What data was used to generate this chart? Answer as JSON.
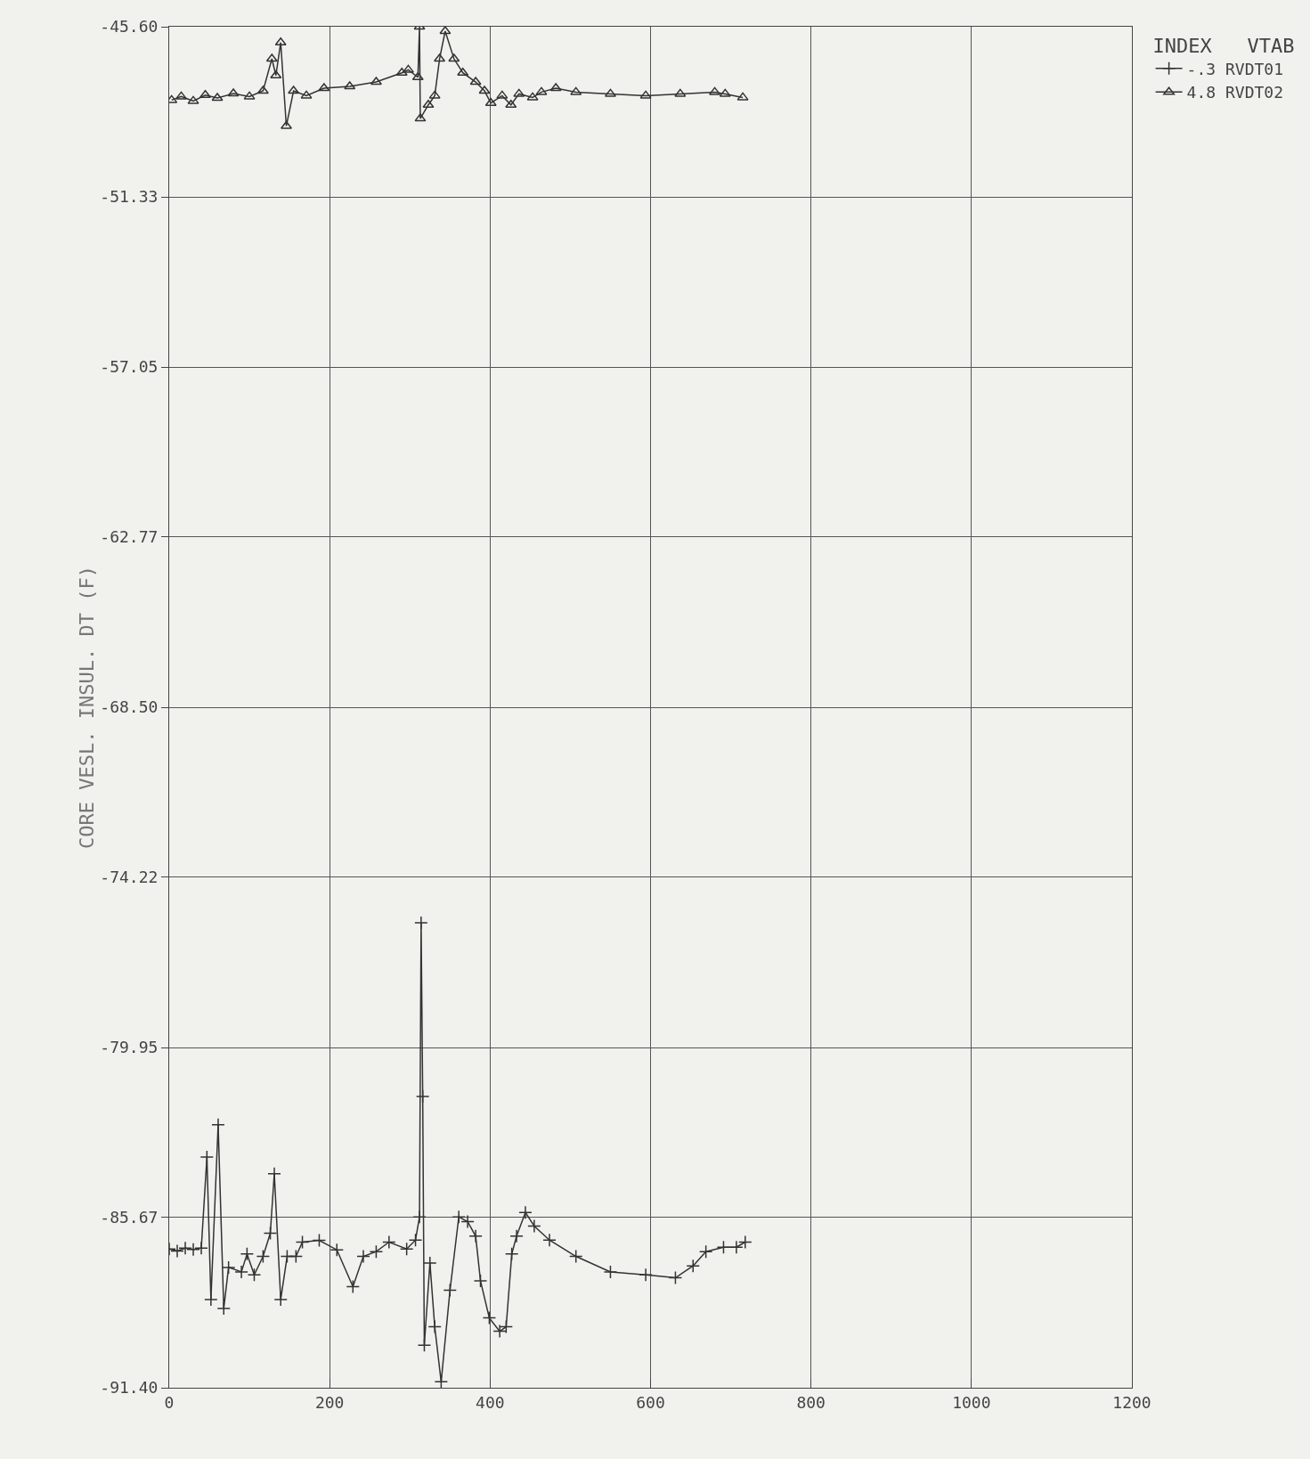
{
  "chart_data": {
    "type": "line",
    "ylabel": "CORE VESL. INSUL. DT (F)",
    "legend_title": "INDEX   VTAB",
    "legend": "top right",
    "grid": true,
    "line_style": "solid",
    "xlim": [
      0,
      1200
    ],
    "xticks": [
      0,
      200,
      400,
      600,
      800,
      1000,
      1200
    ],
    "ylim": [
      -91.4,
      -45.6
    ],
    "yticks": [
      {
        "value": -91.4,
        "label": "-91.40"
      },
      {
        "value": -85.67,
        "label": "-85.67"
      },
      {
        "value": -79.95,
        "label": "-79.95"
      },
      {
        "value": -74.22,
        "label": "-74.22"
      },
      {
        "value": -68.5,
        "label": "-68.50"
      },
      {
        "value": -62.77,
        "label": "-62.77"
      },
      {
        "value": -57.05,
        "label": "-57.05"
      },
      {
        "value": -51.33,
        "label": "-51.33"
      },
      {
        "value": -45.6,
        "label": "-45.60"
      }
    ],
    "series": [
      {
        "name": "-.3 RVDT01",
        "color": "#333333",
        "marker": "cross",
        "x": [
          0,
          10,
          20,
          30,
          40,
          47,
          52,
          61,
          68,
          74,
          90,
          97,
          106,
          117,
          126,
          131,
          139,
          147,
          158,
          166,
          187,
          209,
          229,
          242,
          258,
          274,
          296,
          307,
          312,
          314,
          316,
          318,
          325,
          331,
          339,
          350,
          361,
          372,
          382,
          388,
          399,
          412,
          420,
          427,
          433,
          444,
          455,
          474,
          507,
          550,
          594,
          631,
          653,
          669,
          691,
          707,
          718
        ],
        "values": [
          -86.73,
          -86.8,
          -86.7,
          -86.75,
          -86.7,
          -83.64,
          -88.43,
          -82.55,
          -88.73,
          -87.35,
          -87.5,
          -86.9,
          -87.6,
          -86.98,
          -86.2,
          -84.2,
          -88.43,
          -86.98,
          -86.98,
          -86.5,
          -86.44,
          -86.76,
          -88.0,
          -86.98,
          -86.82,
          -86.5,
          -86.73,
          -86.43,
          -85.65,
          -75.75,
          -81.6,
          -89.97,
          -87.2,
          -89.35,
          -91.2,
          -88.12,
          -85.65,
          -85.81,
          -86.3,
          -87.8,
          -89.05,
          -89.5,
          -89.35,
          -86.9,
          -86.3,
          -85.5,
          -85.96,
          -86.43,
          -86.98,
          -87.5,
          -87.6,
          -87.7,
          -87.3,
          -86.82,
          -86.67,
          -86.67,
          -86.5
        ]
      },
      {
        "name": "4.8 RVDT02",
        "color": "#333333",
        "marker": "triangle",
        "x": [
          3,
          15,
          30,
          45,
          60,
          80,
          100,
          117,
          128,
          133,
          139,
          146,
          155,
          171,
          193,
          225,
          258,
          290,
          298,
          310,
          312,
          313,
          323,
          331,
          337,
          344,
          355,
          366,
          382,
          393,
          401,
          415,
          426,
          436,
          453,
          464,
          482,
          507,
          550,
          594,
          637,
          680,
          693,
          715
        ],
        "values": [
          -48.07,
          -47.95,
          -48.1,
          -47.9,
          -48.0,
          -47.85,
          -47.95,
          -47.76,
          -46.68,
          -47.24,
          -46.13,
          -48.94,
          -47.76,
          -47.92,
          -47.67,
          -47.61,
          -47.46,
          -47.15,
          -47.05,
          -47.3,
          -45.6,
          -48.69,
          -48.23,
          -47.92,
          -46.68,
          -45.75,
          -46.68,
          -47.15,
          -47.46,
          -47.76,
          -48.17,
          -47.92,
          -48.23,
          -47.86,
          -47.98,
          -47.8,
          -47.67,
          -47.8,
          -47.86,
          -47.92,
          -47.86,
          -47.8,
          -47.86,
          -47.98
        ]
      }
    ]
  }
}
